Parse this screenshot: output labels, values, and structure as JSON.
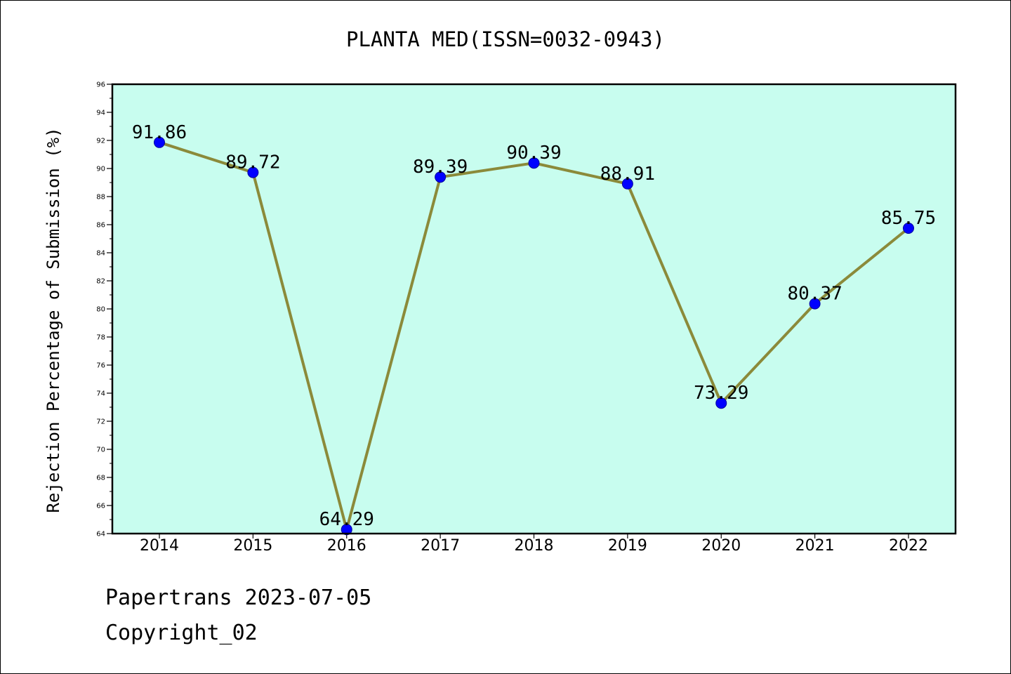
{
  "colors": {
    "plot_background": "#c8fdef",
    "line": "#8b8a3a",
    "marker": "#0000ff",
    "axis": "#000000"
  },
  "footer": {
    "line1": "Papertrans 2023-07-05",
    "line2": "Copyright_02"
  },
  "chart_data": {
    "type": "line",
    "title": "PLANTA MED(ISSN=0032-0943)",
    "xlabel": "",
    "ylabel": "Rejection Percentage of Submission (%)",
    "categories": [
      "2014",
      "2015",
      "2016",
      "2017",
      "2018",
      "2019",
      "2020",
      "2021",
      "2022"
    ],
    "series": [
      {
        "values": [
          91.86,
          89.72,
          64.29,
          89.39,
          90.39,
          88.91,
          73.29,
          80.37,
          85.75
        ],
        "labels": [
          "91.86",
          "89.72",
          "64.29",
          "89.39",
          "90.39",
          "88.91",
          "73.29",
          "80.37",
          "85.75"
        ]
      }
    ],
    "ylim": [
      64,
      96
    ],
    "yticks": [
      64,
      66,
      68,
      70,
      72,
      74,
      76,
      78,
      80,
      82,
      84,
      86,
      88,
      90,
      92,
      94,
      96
    ],
    "grid": false,
    "legend": "none"
  }
}
